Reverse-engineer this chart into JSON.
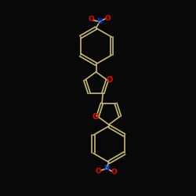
{
  "bg_color": "#080808",
  "bond_color": "#c8b87a",
  "oxygen_color": "#dd1100",
  "nitrogen_color": "#1133cc",
  "figsize": [
    2.5,
    2.5
  ],
  "dpi": 100,
  "xlim": [
    0,
    10
  ],
  "ylim": [
    0,
    10
  ]
}
